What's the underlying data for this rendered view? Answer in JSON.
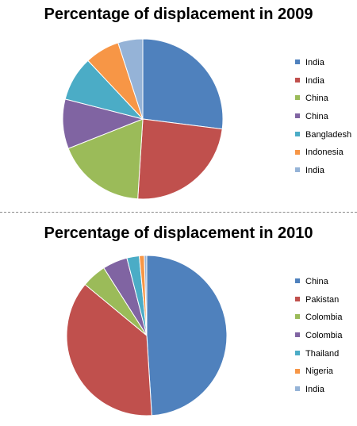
{
  "chart_data": [
    {
      "type": "pie",
      "title": "Percentage of displacement in 2009",
      "categories": [
        "India",
        "India",
        "China",
        "China",
        "Bangladesh",
        "Indonesia",
        "India"
      ],
      "values": [
        27,
        24,
        18,
        10,
        9,
        7,
        5
      ],
      "colors": [
        "#4F81BD",
        "#C0504D",
        "#9BBB59",
        "#8064A2",
        "#4BACC6",
        "#F79646",
        "#95B3D7"
      ],
      "legend_position": "right",
      "start_angle_deg": 0,
      "direction": "clockwise"
    },
    {
      "type": "pie",
      "title": "Percentage of displacement in 2010",
      "categories": [
        "China",
        "Pakistan",
        "Colombia",
        "Colombia",
        "Thailand",
        "Nigeria",
        "India"
      ],
      "values": [
        49,
        37,
        5,
        5,
        2.5,
        1,
        0.5
      ],
      "colors": [
        "#4F81BD",
        "#C0504D",
        "#9BBB59",
        "#8064A2",
        "#4BACC6",
        "#F79646",
        "#95B3D7"
      ],
      "legend_position": "right",
      "start_angle_deg": 0,
      "direction": "clockwise"
    }
  ]
}
